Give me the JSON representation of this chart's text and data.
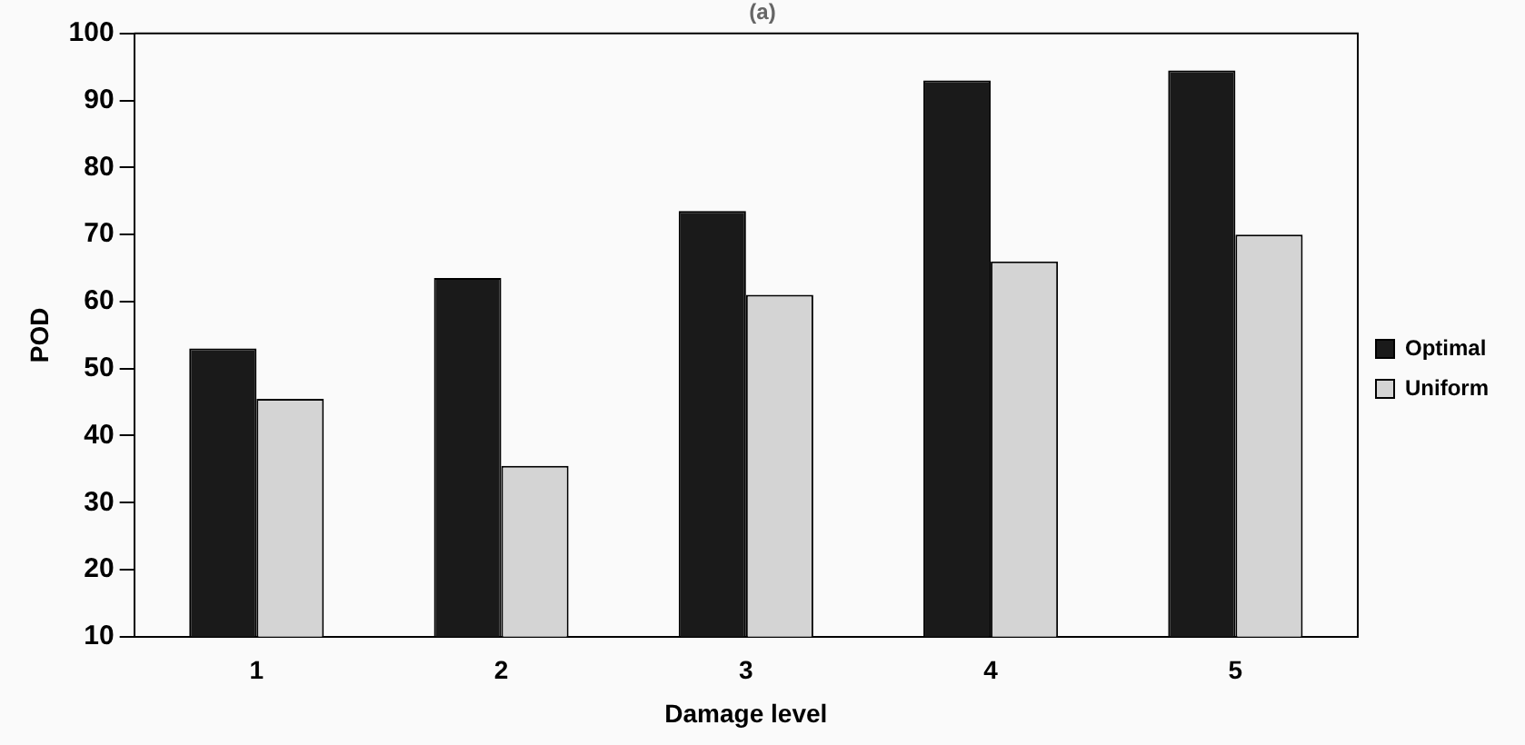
{
  "chart_data": {
    "type": "bar",
    "title": "(a)",
    "xlabel": "Damage level",
    "ylabel": "POD",
    "categories": [
      "1",
      "2",
      "3",
      "4",
      "5"
    ],
    "series": [
      {
        "name": "Optimal",
        "color": "#1a1a1a",
        "values": [
          53,
          63.5,
          73.5,
          93,
          94.5
        ]
      },
      {
        "name": "Uniform",
        "color": "#d4d4d4",
        "values": [
          45.5,
          35.5,
          61,
          66,
          70
        ]
      }
    ],
    "ylim": [
      10,
      100
    ],
    "yticks": [
      10,
      20,
      30,
      40,
      50,
      60,
      70,
      80,
      90,
      100
    ],
    "grid": false,
    "legend": "right"
  }
}
